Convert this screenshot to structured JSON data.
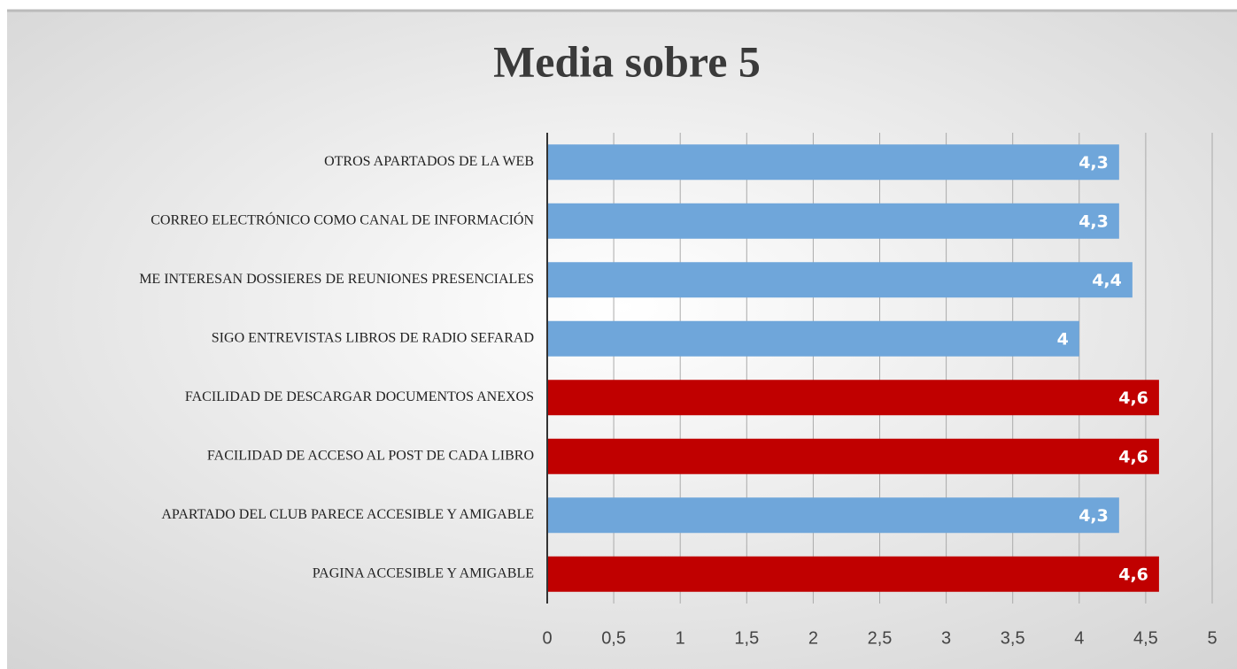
{
  "chart_data": {
    "type": "bar",
    "orientation": "horizontal",
    "title": "Media sobre 5",
    "categories": [
      "OTROS APARTADOS DE LA WEB",
      "CORREO ELECTRÓNICO COMO CANAL DE INFORMACIÓN",
      "ME INTERESAN DOSSIERES DE REUNIONES PRESENCIALES",
      "SIGO ENTREVISTAS LIBROS DE RADIO SEFARAD",
      "FACILIDAD DE DESCARGAR DOCUMENTOS ANEXOS",
      "FACILIDAD DE ACCESO AL POST DE CADA LIBRO",
      "APARTADO DEL CLUB PARECE ACCESIBLE Y AMIGABLE",
      "PAGINA ACCESIBLE Y AMIGABLE"
    ],
    "values": [
      4.3,
      4.3,
      4.4,
      4,
      4.6,
      4.6,
      4.3,
      4.6
    ],
    "value_labels": [
      "4,3",
      "4,3",
      "4,4",
      "4",
      "4,6",
      "4,6",
      "4,3",
      "4,6"
    ],
    "colors": [
      "#6fa6da",
      "#6fa6da",
      "#6fa6da",
      "#6fa6da",
      "#c00000",
      "#c00000",
      "#6fa6da",
      "#c00000"
    ],
    "xlim": [
      0,
      5
    ],
    "xticks": [
      0,
      {
        "value": 0.5,
        "label": "0,5"
      },
      1,
      {
        "value": 1.5,
        "label": "1,5"
      },
      2,
      {
        "value": 2.5,
        "label": "2,5"
      },
      3,
      {
        "value": 3.5,
        "label": "3,5"
      },
      4,
      {
        "value": 4.5,
        "label": "4,5"
      },
      5
    ],
    "grid": true
  }
}
